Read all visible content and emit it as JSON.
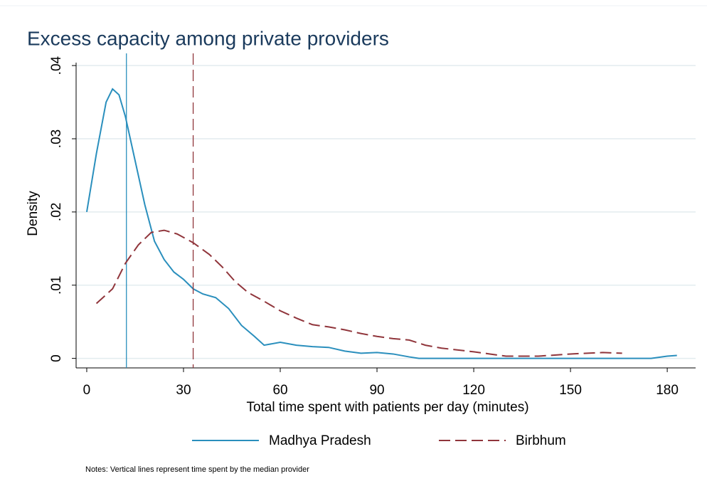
{
  "chart_data": {
    "type": "line",
    "title": "Excess capacity among private providers",
    "x_label": "Total time spent with patients per day (minutes)",
    "y_label": "Density",
    "note": "Notes: Vertical lines represent time spent by the median provider",
    "xlim": [
      -3.3,
      188.8
    ],
    "ylim": [
      -0.0013,
      0.0404
    ],
    "xticks": [
      0,
      30,
      60,
      90,
      120,
      150,
      180
    ],
    "yticks": [
      0,
      {
        "value": 0.01,
        "label": ".01"
      },
      {
        "value": 0.02,
        "label": ".02"
      },
      {
        "value": 0.03,
        "label": ".03"
      },
      {
        "value": 0.04,
        "label": ".04"
      }
    ],
    "grid": true,
    "legend": "bottom",
    "series": [
      {
        "name": "Madhya Pradesh",
        "color": "#2a8fbd",
        "dash": false,
        "median": 12.3,
        "x": [
          0,
          3,
          6,
          8,
          10,
          12,
          15,
          18,
          21,
          24,
          27,
          30,
          33,
          36,
          40,
          44,
          48,
          52,
          55,
          60,
          65,
          70,
          75,
          80,
          85,
          90,
          95,
          100,
          103,
          120,
          150,
          175,
          180,
          183
        ],
        "values": [
          0.02,
          0.028,
          0.035,
          0.0368,
          0.036,
          0.033,
          0.027,
          0.021,
          0.016,
          0.0135,
          0.0118,
          0.0108,
          0.0095,
          0.0088,
          0.0083,
          0.0068,
          0.0045,
          0.003,
          0.0018,
          0.0022,
          0.0018,
          0.0016,
          0.0015,
          0.001,
          0.0007,
          0.0008,
          0.0006,
          0.0002,
          0,
          0,
          0,
          0,
          0.0003,
          0.0004
        ]
      },
      {
        "name": "Birbhum",
        "color": "#90353b",
        "dash": true,
        "median": 33,
        "x": [
          3,
          8,
          12,
          16,
          20,
          24,
          28,
          33,
          38,
          42,
          46,
          50,
          55,
          60,
          65,
          70,
          75,
          80,
          85,
          90,
          95,
          100,
          105,
          110,
          120,
          125,
          130,
          140,
          150,
          160,
          166
        ],
        "values": [
          0.0075,
          0.0095,
          0.013,
          0.0155,
          0.0172,
          0.0175,
          0.017,
          0.0158,
          0.0142,
          0.0125,
          0.0105,
          0.009,
          0.0078,
          0.0065,
          0.0055,
          0.0046,
          0.0043,
          0.0039,
          0.0034,
          0.003,
          0.0027,
          0.0025,
          0.0018,
          0.0014,
          0.0009,
          0.0006,
          0.0003,
          0.0003,
          0.0006,
          0.0008,
          0.0007
        ]
      }
    ]
  }
}
